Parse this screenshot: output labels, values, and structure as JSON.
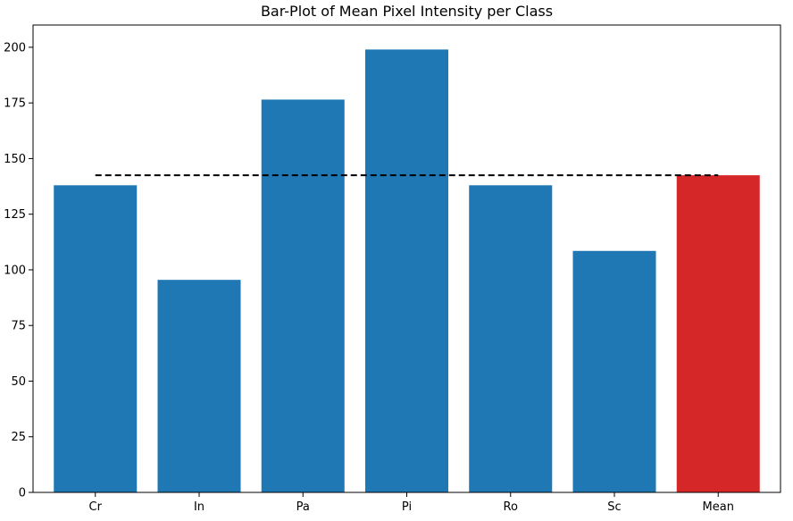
{
  "chart_data": {
    "type": "bar",
    "title": "Bar-Plot of Mean Pixel Intensity per Class",
    "xlabel": "",
    "ylabel": "",
    "categories": [
      "Cr",
      "In",
      "Pa",
      "Pi",
      "Ro",
      "Sc",
      "Mean"
    ],
    "values": [
      138,
      95.5,
      176.5,
      199,
      138,
      108.5,
      142.5
    ],
    "bar_colors": [
      "#1f77b4",
      "#1f77b4",
      "#1f77b4",
      "#1f77b4",
      "#1f77b4",
      "#1f77b4",
      "#d62728"
    ],
    "ylim": [
      0,
      210
    ],
    "yticks": [
      0,
      25,
      50,
      75,
      100,
      125,
      150,
      175,
      200
    ],
    "reference_line": {
      "value": 142.5,
      "style": "dashed",
      "color": "#000000",
      "from_category": "Cr",
      "to_category": "Mean"
    },
    "grid": false,
    "legend": "none"
  }
}
